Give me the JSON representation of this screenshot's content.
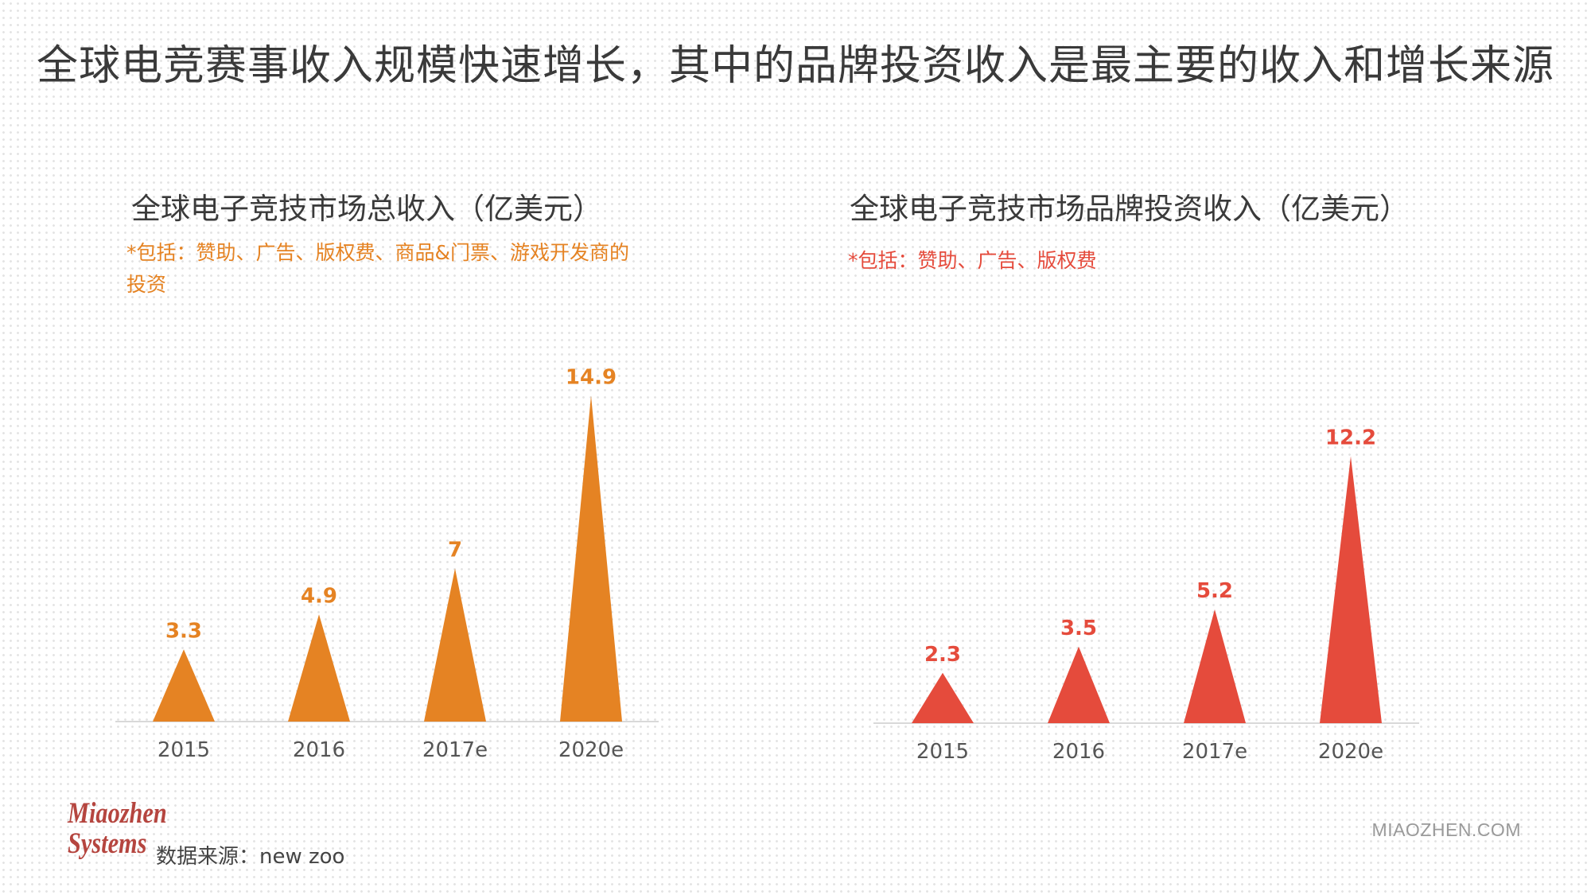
{
  "page": {
    "title": "全球电竞赛事收入规模快速增长，其中的品牌投资收入是最主要的收入和增长来源",
    "source": "数据来源：new zoo",
    "logo_line1": "Miaozhen",
    "logo_line2": "Systems",
    "site": "MIAOZHEN.COM"
  },
  "chart_data": [
    {
      "type": "bar",
      "title": "全球电子竞技市场总收入（亿美元）",
      "note": "*包括：赞助、广告、版权费、商品&门票、游戏开发商的投资",
      "categories": [
        "2015",
        "2016",
        "2017e",
        "2020e"
      ],
      "values": [
        3.3,
        4.9,
        7,
        14.9
      ],
      "value_labels": [
        "3.3",
        "4.9",
        "7",
        "14.9"
      ],
      "color": "#e58323",
      "bar_shape": "triangle",
      "ylim": [
        0,
        15
      ]
    },
    {
      "type": "bar",
      "title": "全球电子竞技市场品牌投资收入（亿美元）",
      "note": "*包括：赞助、广告、版权费",
      "categories": [
        "2015",
        "2016",
        "2017e",
        "2020e"
      ],
      "values": [
        2.3,
        3.5,
        5.2,
        12.2
      ],
      "value_labels": [
        "2.3",
        "3.5",
        "5.2",
        "12.2"
      ],
      "color": "#e54b3c",
      "bar_shape": "triangle",
      "ylim": [
        0,
        15
      ]
    }
  ]
}
